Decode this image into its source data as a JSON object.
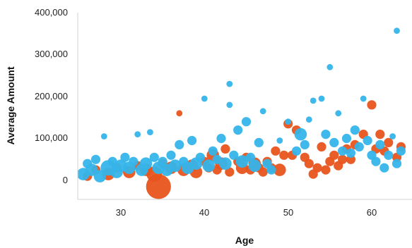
{
  "chart_data": {
    "type": "scatter",
    "title": "",
    "xlabel": "Age",
    "ylabel": "Average Amount",
    "xlim": [
      25,
      64
    ],
    "ylim": [
      -40000,
      410000
    ],
    "x_ticks": [
      30,
      40,
      50,
      60
    ],
    "x_tick_labels": [
      "30",
      "40",
      "50",
      "60"
    ],
    "y_ticks": [
      0,
      100000,
      200000,
      300000,
      400000
    ],
    "y_tick_labels": [
      "0",
      "100,000",
      "200,000",
      "300,000",
      "400,000"
    ],
    "grid": false,
    "legend": "none",
    "colors": {
      "orange": "#e8541e",
      "blue": "#35b4ea"
    },
    "series": [
      {
        "color": "orange",
        "points": [
          {
            "x": 26,
            "y": 10000,
            "r": 3
          },
          {
            "x": 27,
            "y": 25000,
            "r": 3
          },
          {
            "x": 28.5,
            "y": 15000,
            "r": 4
          },
          {
            "x": 29.5,
            "y": 30000,
            "r": 3
          },
          {
            "x": 31,
            "y": 20000,
            "r": 4
          },
          {
            "x": 32,
            "y": 35000,
            "r": 3
          },
          {
            "x": 33,
            "y": 25000,
            "r": 4
          },
          {
            "x": 34,
            "y": 15000,
            "r": 5
          },
          {
            "x": 34.5,
            "y": -15000,
            "r": 8
          },
          {
            "x": 35,
            "y": 40000,
            "r": 3
          },
          {
            "x": 36,
            "y": 30000,
            "r": 4
          },
          {
            "x": 37,
            "y": 160000,
            "r": 2
          },
          {
            "x": 37.5,
            "y": 25000,
            "r": 4
          },
          {
            "x": 38.5,
            "y": 35000,
            "r": 4
          },
          {
            "x": 39,
            "y": 20000,
            "r": 4
          },
          {
            "x": 40,
            "y": 45000,
            "r": 3
          },
          {
            "x": 40.5,
            "y": 30000,
            "r": 3
          },
          {
            "x": 41,
            "y": 60000,
            "r": 4
          },
          {
            "x": 41.5,
            "y": 25000,
            "r": 3
          },
          {
            "x": 42,
            "y": 40000,
            "r": 4
          },
          {
            "x": 42.5,
            "y": 75000,
            "r": 3
          },
          {
            "x": 43,
            "y": 20000,
            "r": 3
          },
          {
            "x": 44,
            "y": 45000,
            "r": 3
          },
          {
            "x": 44.5,
            "y": 30000,
            "r": 4
          },
          {
            "x": 45,
            "y": 55000,
            "r": 3
          },
          {
            "x": 45.5,
            "y": 25000,
            "r": 3
          },
          {
            "x": 46,
            "y": 40000,
            "r": 4
          },
          {
            "x": 46.5,
            "y": 30000,
            "r": 3
          },
          {
            "x": 47,
            "y": 20000,
            "r": 3
          },
          {
            "x": 47.5,
            "y": 45000,
            "r": 3
          },
          {
            "x": 48,
            "y": 30000,
            "r": 3
          },
          {
            "x": 48.5,
            "y": 70000,
            "r": 3
          },
          {
            "x": 49,
            "y": 25000,
            "r": 4
          },
          {
            "x": 49.5,
            "y": 60000,
            "r": 3
          },
          {
            "x": 50,
            "y": 135000,
            "r": 3
          },
          {
            "x": 50.5,
            "y": 60000,
            "r": 3
          },
          {
            "x": 51,
            "y": 120000,
            "r": 3
          },
          {
            "x": 52,
            "y": 55000,
            "r": 3
          },
          {
            "x": 52.5,
            "y": 40000,
            "r": 3
          },
          {
            "x": 53,
            "y": 15000,
            "r": 3
          },
          {
            "x": 53.5,
            "y": 30000,
            "r": 3
          },
          {
            "x": 54,
            "y": 80000,
            "r": 3
          },
          {
            "x": 54.5,
            "y": 25000,
            "r": 3
          },
          {
            "x": 55,
            "y": 45000,
            "r": 3
          },
          {
            "x": 55.5,
            "y": 60000,
            "r": 3
          },
          {
            "x": 56,
            "y": 35000,
            "r": 3
          },
          {
            "x": 56.5,
            "y": 50000,
            "r": 3
          },
          {
            "x": 57,
            "y": 75000,
            "r": 3
          },
          {
            "x": 57.5,
            "y": 50000,
            "r": 3
          },
          {
            "x": 58,
            "y": 85000,
            "r": 3
          },
          {
            "x": 59,
            "y": 110000,
            "r": 3
          },
          {
            "x": 60,
            "y": 180000,
            "r": 3
          },
          {
            "x": 60.5,
            "y": 75000,
            "r": 3
          },
          {
            "x": 61,
            "y": 110000,
            "r": 3
          },
          {
            "x": 61.5,
            "y": 70000,
            "r": 3
          },
          {
            "x": 62,
            "y": 90000,
            "r": 3
          },
          {
            "x": 63,
            "y": 55000,
            "r": 3
          },
          {
            "x": 63.5,
            "y": 80000,
            "r": 3
          }
        ]
      },
      {
        "color": "blue",
        "points": [
          {
            "x": 25.5,
            "y": 15000,
            "r": 4
          },
          {
            "x": 26,
            "y": 40000,
            "r": 3
          },
          {
            "x": 26.5,
            "y": 25000,
            "r": 4
          },
          {
            "x": 27,
            "y": 50000,
            "r": 3
          },
          {
            "x": 27.5,
            "y": 10000,
            "r": 4
          },
          {
            "x": 28,
            "y": 105000,
            "r": 2
          },
          {
            "x": 28.5,
            "y": 30000,
            "r": 5
          },
          {
            "x": 29,
            "y": 45000,
            "r": 3
          },
          {
            "x": 29.5,
            "y": 20000,
            "r": 4
          },
          {
            "x": 30,
            "y": 35000,
            "r": 4
          },
          {
            "x": 30.5,
            "y": 55000,
            "r": 3
          },
          {
            "x": 31,
            "y": 30000,
            "r": 4
          },
          {
            "x": 31.5,
            "y": 45000,
            "r": 3
          },
          {
            "x": 32,
            "y": 110000,
            "r": 2
          },
          {
            "x": 32.5,
            "y": 25000,
            "r": 4
          },
          {
            "x": 33,
            "y": 40000,
            "r": 4
          },
          {
            "x": 33.5,
            "y": 115000,
            "r": 2
          },
          {
            "x": 34,
            "y": 55000,
            "r": 3
          },
          {
            "x": 34.5,
            "y": 30000,
            "r": 4
          },
          {
            "x": 35,
            "y": 45000,
            "r": 3
          },
          {
            "x": 35.5,
            "y": 25000,
            "r": 4
          },
          {
            "x": 36,
            "y": 60000,
            "r": 3
          },
          {
            "x": 36.5,
            "y": 35000,
            "r": 4
          },
          {
            "x": 37,
            "y": 85000,
            "r": 3
          },
          {
            "x": 37.5,
            "y": 45000,
            "r": 3
          },
          {
            "x": 38,
            "y": 30000,
            "r": 4
          },
          {
            "x": 38.5,
            "y": 95000,
            "r": 3
          },
          {
            "x": 39,
            "y": 40000,
            "r": 4
          },
          {
            "x": 39.5,
            "y": 55000,
            "r": 3
          },
          {
            "x": 40,
            "y": 195000,
            "r": 2
          },
          {
            "x": 40.5,
            "y": 35000,
            "r": 4
          },
          {
            "x": 41,
            "y": 70000,
            "r": 3
          },
          {
            "x": 41.5,
            "y": 50000,
            "r": 3
          },
          {
            "x": 42,
            "y": 100000,
            "r": 3
          },
          {
            "x": 42.5,
            "y": 40000,
            "r": 4
          },
          {
            "x": 43,
            "y": 230000,
            "r": 2
          },
          {
            "x": 43,
            "y": 180000,
            "r": 2
          },
          {
            "x": 43.5,
            "y": 60000,
            "r": 3
          },
          {
            "x": 44,
            "y": 120000,
            "r": 3
          },
          {
            "x": 44.5,
            "y": 45000,
            "r": 4
          },
          {
            "x": 45,
            "y": 140000,
            "r": 3
          },
          {
            "x": 45.5,
            "y": 55000,
            "r": 3
          },
          {
            "x": 46,
            "y": 35000,
            "r": 4
          },
          {
            "x": 46.5,
            "y": 90000,
            "r": 3
          },
          {
            "x": 47,
            "y": 165000,
            "r": 2
          },
          {
            "x": 47.5,
            "y": 40000,
            "r": 3
          },
          {
            "x": 48,
            "y": 25000,
            "r": 3
          },
          {
            "x": 49,
            "y": 95000,
            "r": 2
          },
          {
            "x": 50,
            "y": 140000,
            "r": 2
          },
          {
            "x": 51,
            "y": 70000,
            "r": 3
          },
          {
            "x": 51.5,
            "y": 110000,
            "r": 4
          },
          {
            "x": 52,
            "y": 85000,
            "r": 3
          },
          {
            "x": 52.5,
            "y": 145000,
            "r": 2
          },
          {
            "x": 53,
            "y": 190000,
            "r": 2
          },
          {
            "x": 54,
            "y": 195000,
            "r": 2
          },
          {
            "x": 54.5,
            "y": 110000,
            "r": 3
          },
          {
            "x": 55,
            "y": 270000,
            "r": 2
          },
          {
            "x": 55.5,
            "y": 90000,
            "r": 3
          },
          {
            "x": 56,
            "y": 160000,
            "r": 2
          },
          {
            "x": 56.5,
            "y": 70000,
            "r": 3
          },
          {
            "x": 57,
            "y": 100000,
            "r": 3
          },
          {
            "x": 57.5,
            "y": 65000,
            "r": 3
          },
          {
            "x": 58,
            "y": 120000,
            "r": 3
          },
          {
            "x": 58.5,
            "y": 80000,
            "r": 3
          },
          {
            "x": 59,
            "y": 195000,
            "r": 2
          },
          {
            "x": 59.5,
            "y": 95000,
            "r": 3
          },
          {
            "x": 60,
            "y": 60000,
            "r": 3
          },
          {
            "x": 60.5,
            "y": 45000,
            "r": 3
          },
          {
            "x": 61,
            "y": 85000,
            "r": 3
          },
          {
            "x": 61.5,
            "y": 30000,
            "r": 3
          },
          {
            "x": 62,
            "y": 60000,
            "r": 3
          },
          {
            "x": 62.5,
            "y": 105000,
            "r": 2
          },
          {
            "x": 63,
            "y": 40000,
            "r": 3
          },
          {
            "x": 63,
            "y": 357000,
            "r": 2
          },
          {
            "x": 63.5,
            "y": 70000,
            "r": 3
          }
        ]
      }
    ]
  }
}
